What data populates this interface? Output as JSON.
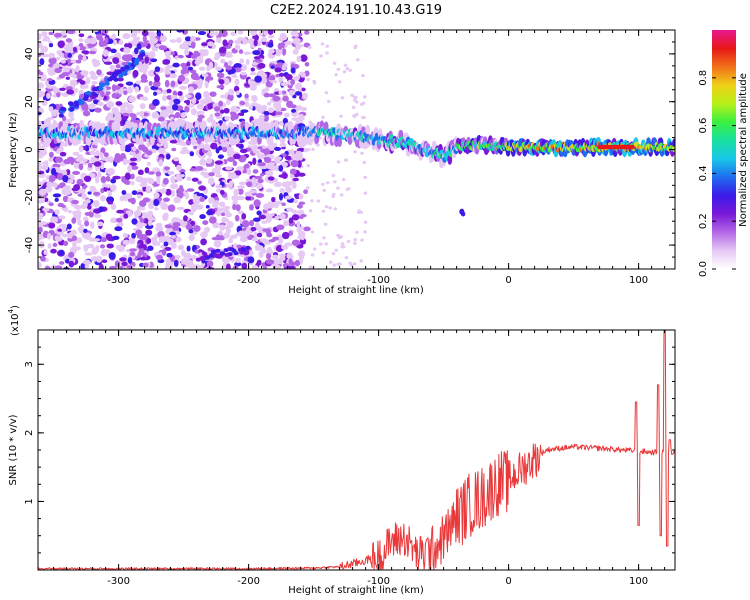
{
  "title": "C2E2.2024.191.10.43.G19",
  "colors": {
    "snr_line": "#e8383a",
    "colormap": [
      "#ffffff",
      "#e6c8f5",
      "#b266e6",
      "#7a18d8",
      "#3a1be8",
      "#1f6cf0",
      "#18c8e8",
      "#18e0a0",
      "#3af040",
      "#b8f018",
      "#f0d018",
      "#f07018",
      "#e81818",
      "#e81890"
    ]
  },
  "chart_data": [
    {
      "type": "heatmap",
      "title": "C2E2.2024.191.10.43.G19",
      "xlabel": "Height of straight line (km)",
      "ylabel": "Frequency (Hz)",
      "xlim": [
        -362,
        128
      ],
      "ylim": [
        -50,
        50
      ],
      "xticks": [
        -300,
        -200,
        -100,
        0,
        100
      ],
      "yticks": [
        -40,
        -20,
        0,
        20,
        40
      ],
      "colorbar": {
        "label": "Normalized spectral amplitude",
        "range": [
          0,
          1
        ],
        "ticks": [
          "0.0",
          "0.2",
          "0.4",
          "0.6",
          "0.8"
        ]
      },
      "features": {
        "main_band": [
          [
            -362,
            7
          ],
          [
            -300,
            7
          ],
          [
            -200,
            7
          ],
          [
            -150,
            7
          ],
          [
            -120,
            6
          ],
          [
            -100,
            4
          ],
          [
            -80,
            3
          ],
          [
            -60,
            -1
          ],
          [
            -50,
            -3
          ],
          [
            -40,
            1
          ],
          [
            -20,
            2
          ],
          [
            0,
            1
          ],
          [
            50,
            1
          ],
          [
            100,
            1
          ],
          [
            128,
            1
          ]
        ],
        "rising_track": [
          [
            -345,
            15
          ],
          [
            -300,
            31
          ],
          [
            -280,
            40
          ]
        ],
        "low_track": [
          [
            -240,
            -45
          ],
          [
            -200,
            -42
          ]
        ],
        "isolated_blob": [
          -36,
          -26
        ],
        "noise_extent": [
          -362,
          -155
        ]
      }
    },
    {
      "type": "line",
      "xlabel": "Height of straight line (km)",
      "ylabel": "SNR (10 * v/v)",
      "y_scale_label": "(x10",
      "y_scale_exponent": "4",
      "xlim": [
        -362,
        128
      ],
      "ylim": [
        0,
        3.5
      ],
      "xticks": [
        -300,
        -200,
        -100,
        0,
        100
      ],
      "yticks": [
        1,
        2,
        3
      ],
      "series": [
        {
          "points": [
            [
              -362,
              0.02
            ],
            [
              -300,
              0.02
            ],
            [
              -200,
              0.02
            ],
            [
              -150,
              0.03
            ],
            [
              -130,
              0.05
            ],
            [
              -115,
              0.12
            ],
            [
              -100,
              0.2
            ],
            [
              -90,
              0.45
            ],
            [
              -80,
              0.5
            ],
            [
              -70,
              0.25
            ],
            [
              -60,
              0.3
            ],
            [
              -50,
              0.5
            ],
            [
              -40,
              0.8
            ],
            [
              -30,
              1.0
            ],
            [
              -20,
              1.1
            ],
            [
              -10,
              1.3
            ],
            [
              0,
              1.35
            ],
            [
              10,
              1.5
            ],
            [
              20,
              1.65
            ],
            [
              30,
              1.76
            ],
            [
              50,
              1.8
            ],
            [
              70,
              1.78
            ],
            [
              90,
              1.75
            ],
            [
              100,
              1.74
            ],
            [
              110,
              1.72
            ],
            [
              128,
              1.72
            ]
          ],
          "noise": [
            [
              -362,
              -130,
              0.02
            ],
            [
              -130,
              -105,
              0.08
            ],
            [
              -105,
              -65,
              0.35
            ],
            [
              -65,
              -40,
              0.45
            ],
            [
              -40,
              0,
              0.6
            ],
            [
              0,
              25,
              0.35
            ],
            [
              25,
              128,
              0.05
            ]
          ],
          "spikes": [
            [
              98,
              2.45
            ],
            [
              100,
              0.65
            ],
            [
              115,
              2.7
            ],
            [
              117,
              0.5
            ],
            [
              120,
              3.5
            ],
            [
              122,
              0.35
            ],
            [
              124,
              1.9
            ]
          ]
        }
      ]
    }
  ]
}
